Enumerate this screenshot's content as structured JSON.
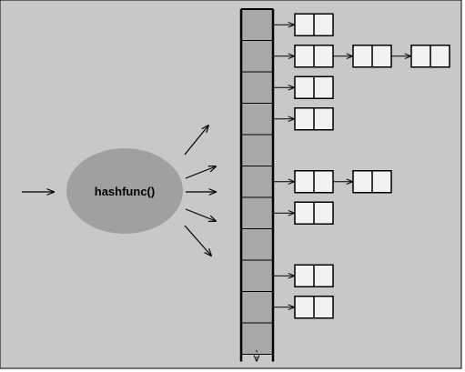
{
  "diagram": {
    "hash_function_label": "hashfunc()",
    "bucket_count": 11,
    "chains": [
      {
        "bucket": 0,
        "nodes": 1
      },
      {
        "bucket": 1,
        "nodes": 3
      },
      {
        "bucket": 2,
        "nodes": 1
      },
      {
        "bucket": 3,
        "nodes": 1
      },
      {
        "bucket": 4,
        "nodes": 0
      },
      {
        "bucket": 5,
        "nodes": 2
      },
      {
        "bucket": 6,
        "nodes": 1
      },
      {
        "bucket": 7,
        "nodes": 0
      },
      {
        "bucket": 8,
        "nodes": 1
      },
      {
        "bucket": 9,
        "nodes": 1
      },
      {
        "bucket": 10,
        "nodes": 0
      }
    ],
    "colors": {
      "background": "#c8c8c8",
      "ellipse_fill": "#a0a0a0",
      "bucket_fill": "#a8a8a8",
      "node_fill": "#f2f2f2",
      "stroke": "#000000"
    }
  }
}
